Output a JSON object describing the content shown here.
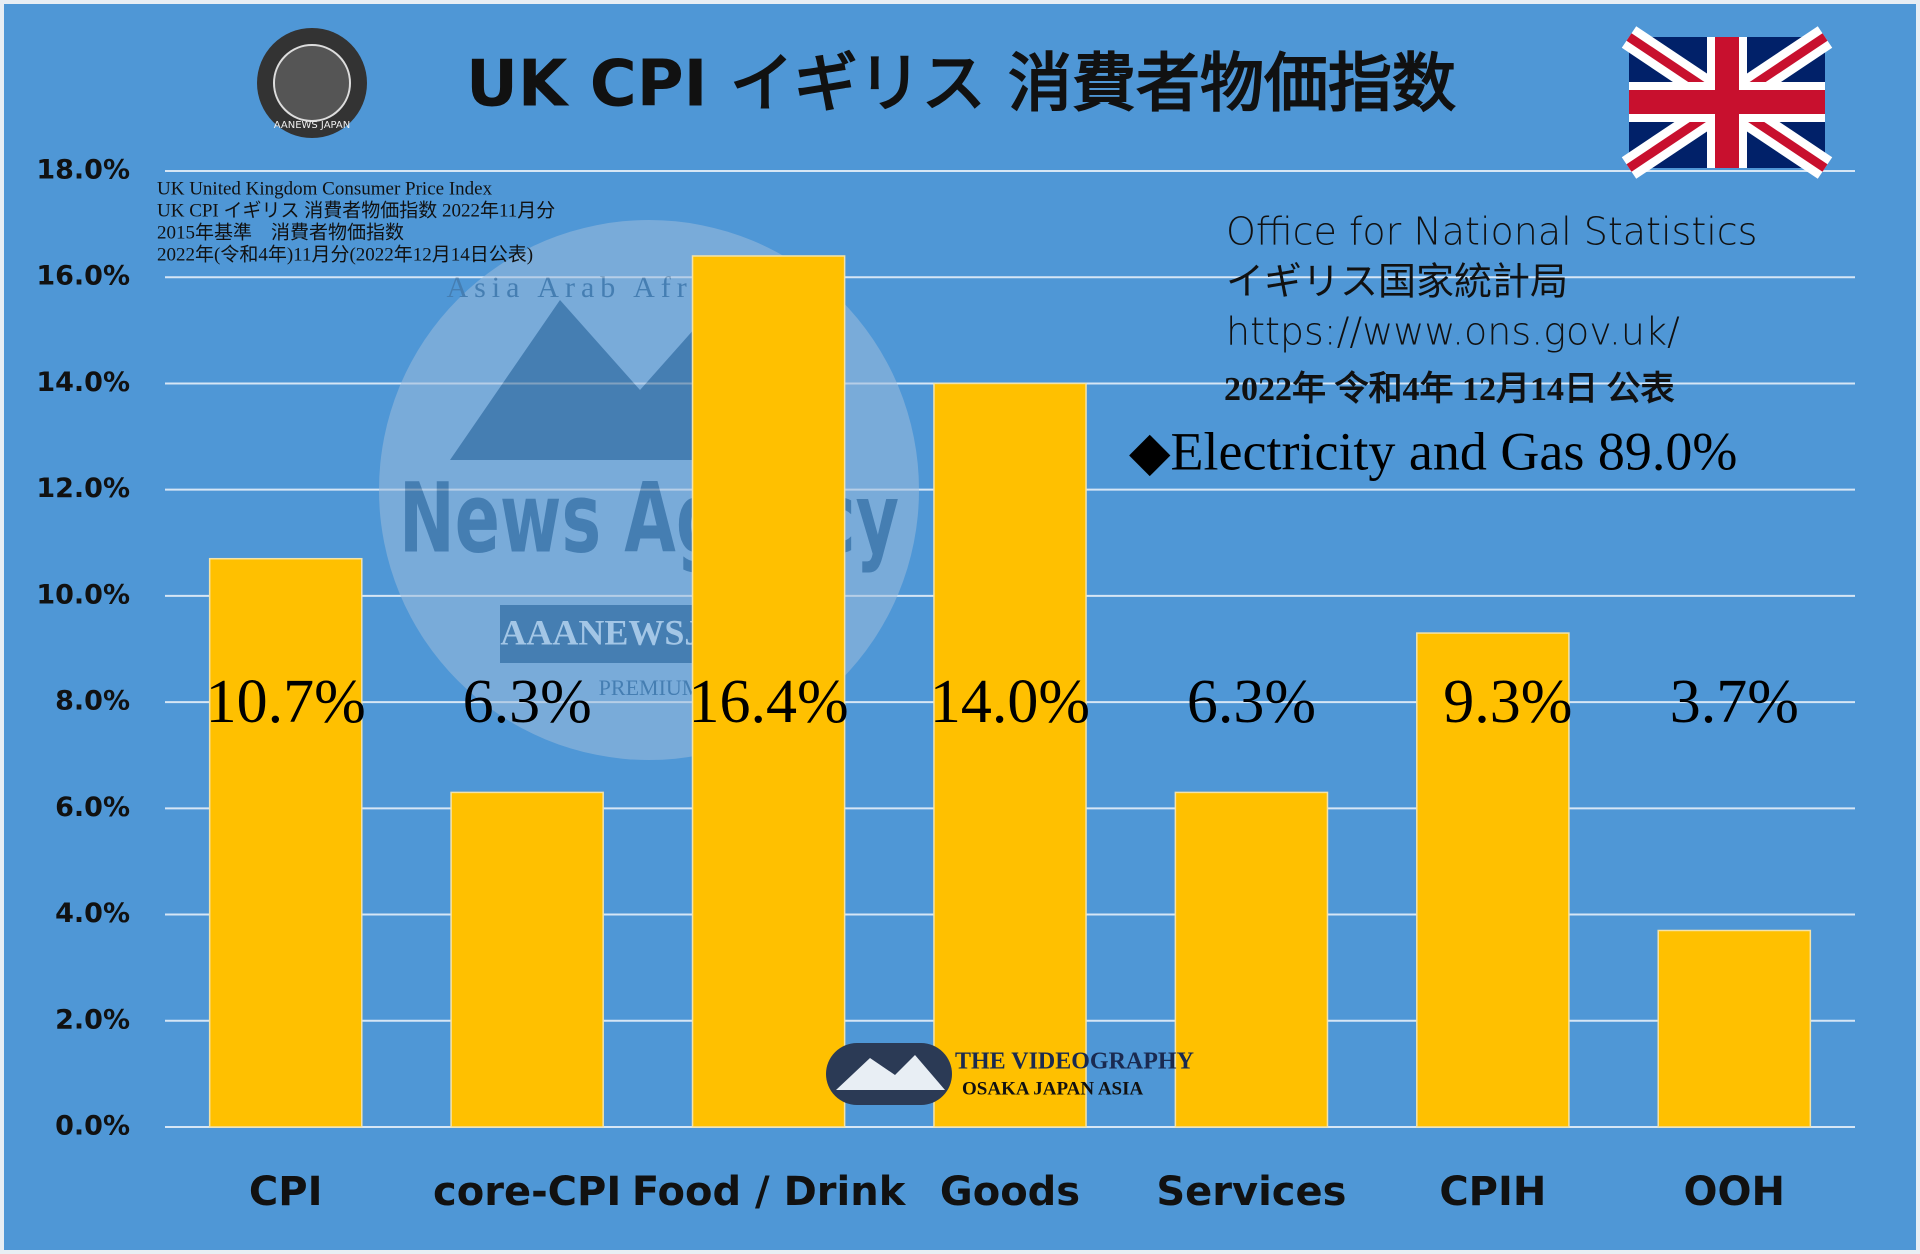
{
  "chart_data": {
    "type": "bar",
    "title": "UK CPI イギリス 消費者物価指数",
    "categories": [
      "CPI",
      "core-CPI",
      "Food / Drink",
      "Goods",
      "Services",
      "CPIH",
      "OOH"
    ],
    "values": [
      10.7,
      6.3,
      16.4,
      14.0,
      6.3,
      9.3,
      3.7
    ],
    "value_labels": [
      "10.7%",
      "6.3%",
      "16.4%",
      "14.0%",
      "6.3%",
      "9.3%",
      "3.7%"
    ],
    "color": "#ffc000",
    "ylim": [
      0,
      18
    ],
    "yticks": [
      {
        "value": 0,
        "label": "0.0%"
      },
      {
        "value": 2,
        "label": "2.0%"
      },
      {
        "value": 4,
        "label": "4.0%"
      },
      {
        "value": 6,
        "label": "6.0%"
      },
      {
        "value": 8,
        "label": "8.0%"
      },
      {
        "value": 10,
        "label": "10.0%"
      },
      {
        "value": 12,
        "label": "12.0%"
      },
      {
        "value": 14,
        "label": "14.0%"
      },
      {
        "value": 16,
        "label": "16.0%"
      },
      {
        "value": 18,
        "label": "18.0%"
      }
    ],
    "grid": true,
    "notes": [
      "UK United Kingdom Consumer Price Index",
      "UK CPI イギリス 消費者物価指数 2022年11月分",
      "2015年基準　消費者物価指数",
      "2022年(令和4年)11月分(2022年12月14日公表)"
    ],
    "source": [
      "Office for National Statistics",
      "イギリス国家統計局",
      "https://www.ons.gov.uk/"
    ],
    "release_date": "2022年 令和4年 12月14日 公表",
    "highlight": "◆Electricity and Gas 89.0%",
    "watermark": [
      "Asia Arab Africa News",
      "News Agency",
      "AAANEWSJAPAN",
      "PREMIUM"
    ],
    "logo": "AANEWS JAPAN",
    "credit": [
      "THE VIDEOGRAPHY",
      "OSAKA JAPAN ASIA"
    ]
  }
}
